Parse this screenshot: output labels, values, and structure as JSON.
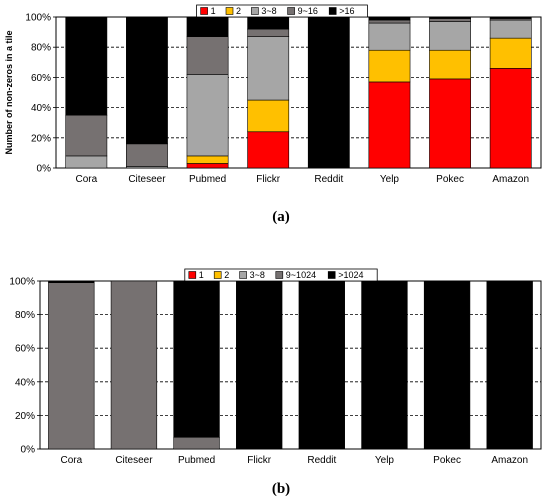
{
  "chart_data": [
    {
      "type": "bar",
      "stacked": true,
      "categories": [
        "Cora",
        "Citeseer",
        "Pubmed",
        "Flickr",
        "Reddit",
        "Yelp",
        "Pokec",
        "Amazon"
      ],
      "ylabel": "Number of non-zeros in a tile",
      "ylim": [
        0,
        100
      ],
      "yticks": [
        "0%",
        "20%",
        "40%",
        "60%",
        "80%",
        "100%"
      ],
      "caption": "(a)",
      "legend_position": "top-center",
      "grid": "horizontal-dashed",
      "series": [
        {
          "name": "1",
          "color": "#ff0000",
          "values": [
            0,
            0,
            3,
            24,
            0,
            57,
            59,
            66
          ]
        },
        {
          "name": "2",
          "color": "#ffc000",
          "values": [
            0,
            0,
            5,
            21,
            0,
            21,
            19,
            20
          ]
        },
        {
          "name": "3~8",
          "color": "#a6a6a6",
          "values": [
            8,
            1,
            54,
            42,
            0,
            18,
            19,
            12
          ]
        },
        {
          "name": "9~16",
          "color": "#767171",
          "values": [
            27,
            15,
            25,
            5,
            0,
            2,
            2,
            1
          ]
        },
        {
          "name": ">16",
          "color": "#000000",
          "values": [
            65,
            84,
            13,
            8,
            100,
            2,
            1,
            1
          ]
        }
      ]
    },
    {
      "type": "bar",
      "stacked": true,
      "categories": [
        "Cora",
        "Citeseer",
        "Pubmed",
        "Flickr",
        "Reddit",
        "Yelp",
        "Pokec",
        "Amazon"
      ],
      "ylabel": "",
      "ylim": [
        0,
        100
      ],
      "yticks": [
        "0%",
        "20%",
        "40%",
        "60%",
        "80%",
        "100%"
      ],
      "caption": "(b)",
      "legend_position": "top-center",
      "grid": "horizontal-dashed",
      "series": [
        {
          "name": "1",
          "color": "#ff0000",
          "values": [
            0,
            0,
            0,
            0,
            0,
            0,
            0,
            0
          ]
        },
        {
          "name": "2",
          "color": "#ffc000",
          "values": [
            0,
            0,
            0,
            0,
            0,
            0,
            0,
            0
          ]
        },
        {
          "name": "3~8",
          "color": "#a6a6a6",
          "values": [
            0,
            0,
            0,
            0,
            0,
            0,
            0,
            0
          ]
        },
        {
          "name": "9~1024",
          "color": "#767171",
          "values": [
            99,
            100,
            7,
            0,
            0,
            0,
            0,
            0
          ]
        },
        {
          "name": ">1024",
          "color": "#000000",
          "values": [
            1,
            0,
            93,
            100,
            100,
            100,
            100,
            100
          ]
        }
      ]
    }
  ]
}
